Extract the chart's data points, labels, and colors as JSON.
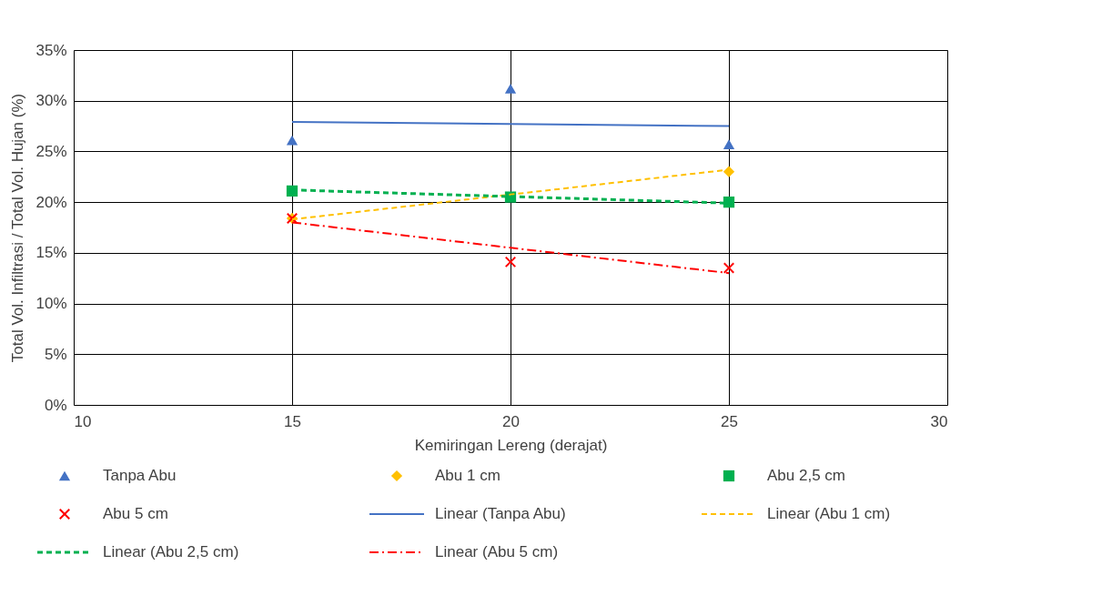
{
  "chart_data": {
    "type": "scatter",
    "xlabel": "Kemiringan Lereng (derajat)",
    "ylabel": "Total Vol. Infiltrasi / Total Vol. Hujan (%)",
    "xlim": [
      10,
      30
    ],
    "xticks": [
      10,
      15,
      20,
      25,
      30
    ],
    "ylim": [
      0,
      35
    ],
    "yticks": [
      {
        "value": 0,
        "label": "0%"
      },
      {
        "value": 5,
        "label": "5%"
      },
      {
        "value": 10,
        "label": "10%"
      },
      {
        "value": 15,
        "label": "15%"
      },
      {
        "value": 20,
        "label": "20%"
      },
      {
        "value": 25,
        "label": "25%"
      },
      {
        "value": 30,
        "label": "30%"
      },
      {
        "value": 35,
        "label": "35%"
      }
    ],
    "grid": true,
    "legend": "bottom",
    "series": [
      {
        "name": "Tanpa Abu",
        "marker": "triangle",
        "color": "#4472c4",
        "x": [
          15,
          20,
          25
        ],
        "values": [
          26.1,
          31.2,
          25.7
        ]
      },
      {
        "name": "Abu 1 cm",
        "marker": "diamond",
        "color": "#ffc000",
        "x": [
          15,
          20,
          25
        ],
        "values": [
          18.4,
          null,
          23.0
        ]
      },
      {
        "name": "Abu 2,5 cm",
        "marker": "square",
        "color": "#00b050",
        "x": [
          15,
          20,
          25
        ],
        "values": [
          21.1,
          20.5,
          20.0
        ]
      },
      {
        "name": "Abu 5 cm",
        "marker": "cross",
        "color": "#ff0000",
        "x": [
          15,
          20,
          25
        ],
        "values": [
          18.4,
          14.1,
          13.5
        ]
      },
      {
        "name": "Linear (Tanpa Abu)",
        "type": "line",
        "marker": "none",
        "line_style": "solid",
        "color": "#4472c4",
        "x": [
          15,
          25
        ],
        "values": [
          27.9,
          27.5
        ]
      },
      {
        "name": "Linear (Abu 1 cm)",
        "type": "line",
        "marker": "none",
        "line_style": "dashed",
        "color": "#ffc000",
        "x": [
          15,
          25
        ],
        "values": [
          18.3,
          23.2
        ]
      },
      {
        "name": "Linear (Abu 2,5 cm)",
        "type": "line",
        "marker": "none",
        "line_style": "dashed",
        "color": "#00b050",
        "x": [
          15,
          25
        ],
        "values": [
          21.2,
          19.9
        ]
      },
      {
        "name": "Linear (Abu 5 cm)",
        "type": "line",
        "marker": "none",
        "line_style": "dashdot",
        "color": "#ff0000",
        "x": [
          15,
          25
        ],
        "values": [
          18.0,
          13.0
        ]
      }
    ]
  }
}
